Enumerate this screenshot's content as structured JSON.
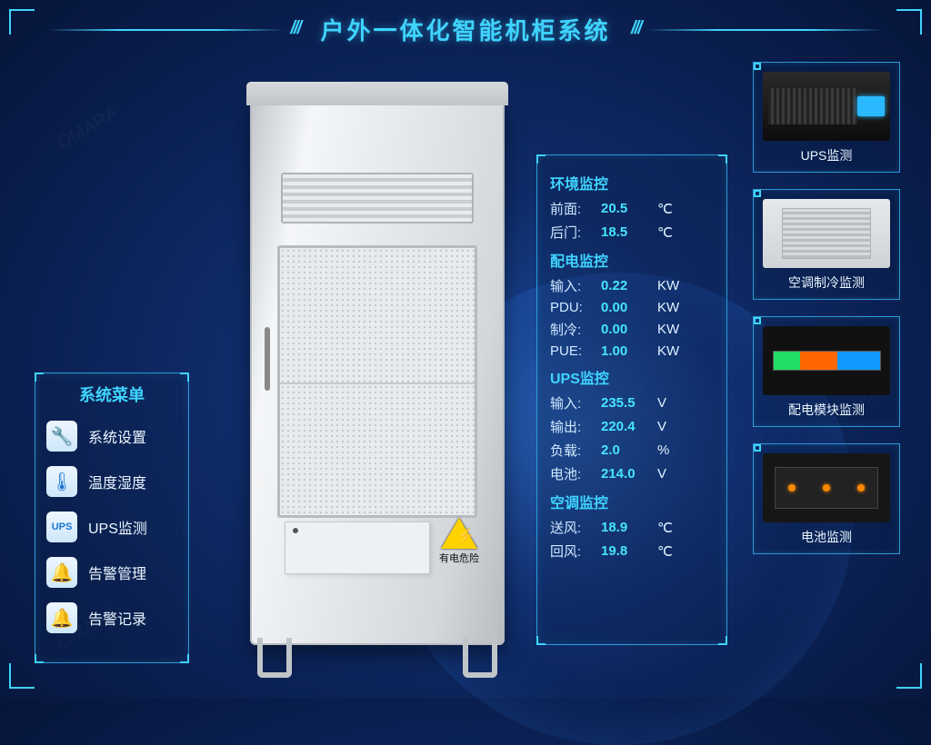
{
  "header": {
    "title": "户外一体化智能机柜系统"
  },
  "cabinet": {
    "danger_label": "有电危险"
  },
  "menu": {
    "title": "系统菜单",
    "items": [
      {
        "icon": "🔧",
        "name": "menu-system-settings",
        "label": "系统设置"
      },
      {
        "icon": "🌡",
        "name": "menu-temp-humidity",
        "label": "温度湿度"
      },
      {
        "icon": "UPS",
        "name": "menu-ups",
        "label": "UPS监测"
      },
      {
        "icon": "🔔",
        "name": "menu-alarm-manage",
        "label": "告警管理"
      },
      {
        "icon": "🔔",
        "name": "menu-alarm-log",
        "label": "告警记录"
      }
    ]
  },
  "data_panel": {
    "sections": [
      {
        "title": "环境监控",
        "rows": [
          {
            "k": "前面:",
            "v": "20.5",
            "u": "℃"
          },
          {
            "k": "后门:",
            "v": "18.5",
            "u": "℃"
          }
        ]
      },
      {
        "title": "配电监控",
        "rows": [
          {
            "k": "输入:",
            "v": "0.22",
            "u": "KW"
          },
          {
            "k": "PDU:",
            "v": "0.00",
            "u": "KW"
          },
          {
            "k": "制冷:",
            "v": "0.00",
            "u": "KW"
          },
          {
            "k": "PUE:",
            "v": "1.00",
            "u": "KW"
          }
        ]
      },
      {
        "title": "UPS监控",
        "rows": [
          {
            "k": "输入:",
            "v": "235.5",
            "u": "V"
          },
          {
            "k": "输出:",
            "v": "220.4",
            "u": "V"
          },
          {
            "k": "负载:",
            "v": "2.0",
            "u": "%"
          },
          {
            "k": "电池:",
            "v": "214.0",
            "u": "V"
          }
        ]
      },
      {
        "title": "空调监控",
        "rows": [
          {
            "k": "送风:",
            "v": "18.9",
            "u": "℃"
          },
          {
            "k": "回风:",
            "v": "19.8",
            "u": "℃"
          }
        ]
      }
    ]
  },
  "right_cards": [
    {
      "name": "card-ups",
      "label": "UPS监测",
      "thumb": "ups"
    },
    {
      "name": "card-ac",
      "label": "空调制冷监测",
      "thumb": "ac"
    },
    {
      "name": "card-pdu",
      "label": "配电模块监测",
      "thumb": "pdu"
    },
    {
      "name": "card-battery",
      "label": "电池监测",
      "thumb": "bat"
    }
  ],
  "colors": {
    "accent": "#3fd4ff",
    "panel_border": "#2a9bd6",
    "value": "#46e4ff"
  }
}
